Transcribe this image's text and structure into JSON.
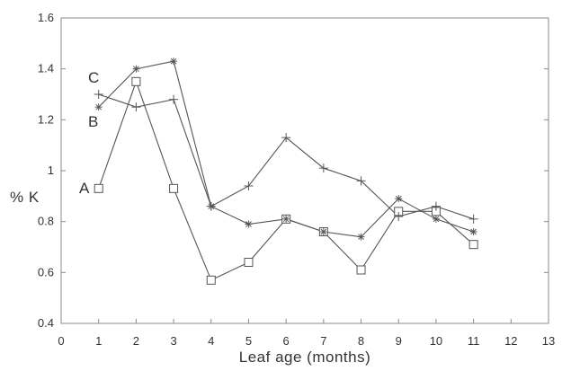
{
  "chart_data": {
    "type": "line",
    "xlabel": "Leaf age (months)",
    "ylabel": "% K",
    "xlim": [
      0,
      13
    ],
    "ylim": [
      0.4,
      1.6
    ],
    "x_ticks": [
      0,
      1,
      2,
      3,
      4,
      5,
      6,
      7,
      8,
      9,
      10,
      11,
      12,
      13
    ],
    "y_ticks": [
      0.4,
      0.6,
      0.8,
      1,
      1.2,
      1.4,
      1.6
    ],
    "y_tick_labels": [
      "0.4",
      "0.6",
      "0.8",
      "1",
      "1.2",
      "1.4",
      "1.6"
    ],
    "grid": false,
    "series": [
      {
        "name": "A",
        "marker": "square",
        "x": [
          1,
          2,
          3,
          4,
          5,
          6,
          7,
          8,
          9,
          10,
          11
        ],
        "values": [
          0.93,
          1.35,
          0.93,
          0.57,
          0.64,
          0.81,
          0.76,
          0.61,
          0.84,
          0.84,
          0.71
        ]
      },
      {
        "name": "B",
        "marker": "star",
        "x": [
          1,
          2,
          3,
          4,
          5,
          6,
          7,
          8,
          9,
          10,
          11
        ],
        "values": [
          1.25,
          1.4,
          1.43,
          0.86,
          0.79,
          0.81,
          0.76,
          0.74,
          0.89,
          0.81,
          0.76
        ]
      },
      {
        "name": "C",
        "marker": "plus",
        "x": [
          1,
          2,
          3,
          4,
          5,
          6,
          7,
          8,
          9,
          10,
          11
        ],
        "values": [
          1.3,
          1.25,
          1.28,
          0.86,
          0.94,
          1.13,
          1.01,
          0.96,
          0.82,
          0.86,
          0.81
        ]
      }
    ]
  }
}
